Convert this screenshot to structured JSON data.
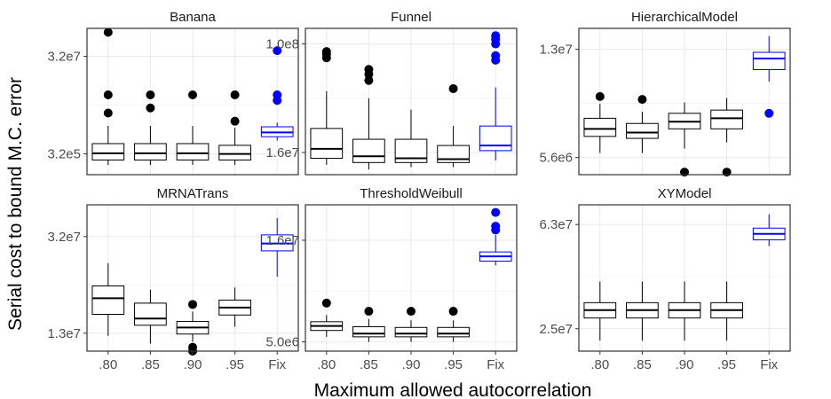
{
  "chart_data": {
    "type": "boxplot",
    "xlabel": "Maximum allowed autocorrelation",
    "ylabel": "Serial cost to bound M.C. error",
    "categories": [
      ".80",
      ".85",
      ".90",
      ".95",
      "Fix"
    ],
    "colors": {
      "default": "#000000",
      "fix": "#0000ff",
      "grid": "#ebebeb",
      "strip": "#ffffff",
      "border": "#333333"
    },
    "y_scale": "log",
    "panels": [
      {
        "title": "Banana",
        "ylim": [
          120000,
          120000000
        ],
        "yticks": [
          {
            "label": "3.2e5",
            "value": 320000
          },
          {
            "label": "3.2e7",
            "value": 32000000
          }
        ],
        "boxes": [
          {
            "category": ".80",
            "lower": 190000,
            "q1": 240000,
            "median": 330000,
            "q3": 520000,
            "upper": 1200000,
            "outliers": [
              100000000,
              5200000,
              2200000
            ]
          },
          {
            "category": ".85",
            "lower": 190000,
            "q1": 240000,
            "median": 330000,
            "q3": 520000,
            "upper": 1200000,
            "outliers": [
              5200000,
              2800000
            ]
          },
          {
            "category": ".90",
            "lower": 190000,
            "q1": 240000,
            "median": 330000,
            "q3": 520000,
            "upper": 1200000,
            "outliers": [
              5200000
            ]
          },
          {
            "category": ".95",
            "lower": 190000,
            "q1": 240000,
            "median": 320000,
            "q3": 480000,
            "upper": 1100000,
            "outliers": [
              5200000,
              1500000
            ]
          },
          {
            "category": "Fix",
            "lower": 600000,
            "q1": 720000,
            "median": 880000,
            "q3": 1150000,
            "upper": 1400000,
            "outliers": [
              42000000,
              5200000,
              4000000
            ]
          }
        ]
      },
      {
        "title": "Funnel",
        "ylim": [
          11000000,
          130000000
        ],
        "yticks": [
          {
            "label": "1.6e7",
            "value": 16000000
          },
          {
            "label": "1.0e8",
            "value": 100000000
          }
        ],
        "boxes": [
          {
            "category": ".80",
            "lower": 13000000,
            "q1": 14500000,
            "median": 17000000,
            "q3": 24000000,
            "upper": 45000000,
            "outliers": [
              88000000,
              84000000,
              79000000
            ]
          },
          {
            "category": ".85",
            "lower": 12000000,
            "q1": 13500000,
            "median": 15000000,
            "q3": 20000000,
            "upper": 40000000,
            "outliers": [
              65000000,
              60000000,
              54000000
            ]
          },
          {
            "category": ".90",
            "lower": 12500000,
            "q1": 13500000,
            "median": 14500000,
            "q3": 20000000,
            "upper": 33000000,
            "outliers": []
          },
          {
            "category": ".95",
            "lower": 12500000,
            "q1": 13500000,
            "median": 14300000,
            "q3": 18000000,
            "upper": 25000000,
            "outliers": [
              47000000
            ]
          },
          {
            "category": "Fix",
            "lower": 14000000,
            "q1": 16500000,
            "median": 18000000,
            "q3": 25000000,
            "upper": 48000000,
            "outliers": [
              115000000,
              108000000,
              100000000,
              82000000,
              76000000
            ]
          }
        ]
      },
      {
        "title": "HierarchicalModel",
        "ylim": [
          4900000,
          15300000
        ],
        "yticks": [
          {
            "label": "5.6e6",
            "value": 5600000
          },
          {
            "label": "1.3e7",
            "value": 13000000
          }
        ],
        "boxes": [
          {
            "category": ".80",
            "lower": 5800000,
            "q1": 6600000,
            "median": 7000000,
            "q3": 7600000,
            "upper": 8500000,
            "outliers": [
              9000000
            ]
          },
          {
            "category": ".85",
            "lower": 5800000,
            "q1": 6500000,
            "median": 6800000,
            "q3": 7300000,
            "upper": 8000000,
            "outliers": [
              8800000
            ]
          },
          {
            "category": ".90",
            "lower": 6000000,
            "q1": 7000000,
            "median": 7400000,
            "q3": 7900000,
            "upper": 8600000,
            "outliers": [
              5000000
            ]
          },
          {
            "category": ".95",
            "lower": 6300000,
            "q1": 7000000,
            "median": 7600000,
            "q3": 8100000,
            "upper": 8900000,
            "outliers": [
              5000000
            ]
          },
          {
            "category": "Fix",
            "lower": 10100000,
            "q1": 11100000,
            "median": 12100000,
            "q3": 12700000,
            "upper": 14400000,
            "outliers": [
              7900000
            ]
          }
        ]
      },
      {
        "title": "MRNATrans",
        "ylim": [
          11000000,
          43000000
        ],
        "yticks": [
          {
            "label": "1.3e7",
            "value": 13000000
          },
          {
            "label": "3.2e7",
            "value": 32000000
          }
        ],
        "boxes": [
          {
            "category": ".80",
            "lower": 12700000,
            "q1": 15500000,
            "median": 18000000,
            "q3": 20200000,
            "upper": 25000000,
            "outliers": []
          },
          {
            "category": ".85",
            "lower": 11800000,
            "q1": 14000000,
            "median": 14900000,
            "q3": 17200000,
            "upper": 19500000,
            "outliers": []
          },
          {
            "category": ".90",
            "lower": 12000000,
            "q1": 12900000,
            "median": 13700000,
            "q3": 14500000,
            "upper": 15900000,
            "outliers": [
              17000000,
              11400000,
              11000000
            ]
          },
          {
            "category": ".95",
            "lower": 13800000,
            "q1": 15400000,
            "median": 16500000,
            "q3": 17700000,
            "upper": 19900000,
            "outliers": []
          },
          {
            "category": "Fix",
            "lower": 22000000,
            "q1": 28000000,
            "median": 30000000,
            "q3": 32500000,
            "upper": 38000000,
            "outliers": []
          }
        ]
      },
      {
        "title": "ThresholdWeibull",
        "ylim": [
          4500000,
          24000000
        ],
        "yticks": [
          {
            "label": "5.0e6",
            "value": 5000000
          },
          {
            "label": "1.6e7",
            "value": 16000000
          }
        ],
        "boxes": [
          {
            "category": ".80",
            "lower": 5300000,
            "q1": 5700000,
            "median": 6000000,
            "q3": 6300000,
            "upper": 6800000,
            "outliers": [
              7800000
            ]
          },
          {
            "category": ".85",
            "lower": 5000000,
            "q1": 5300000,
            "median": 5500000,
            "q3": 5950000,
            "upper": 6500000,
            "outliers": [
              7100000
            ]
          },
          {
            "category": ".90",
            "lower": 5000000,
            "q1": 5300000,
            "median": 5500000,
            "q3": 5900000,
            "upper": 6400000,
            "outliers": [
              7100000
            ]
          },
          {
            "category": ".95",
            "lower": 5000000,
            "q1": 5300000,
            "median": 5500000,
            "q3": 5900000,
            "upper": 6400000,
            "outliers": [
              7100000
            ]
          },
          {
            "category": "Fix",
            "lower": 12000000,
            "q1": 12600000,
            "median": 13300000,
            "q3": 14000000,
            "upper": 17000000,
            "outliers": [
              22000000,
              18800000,
              18000000
            ]
          }
        ]
      },
      {
        "title": "XYModel",
        "ylim": [
          20500000,
          75000000
        ],
        "yticks": [
          {
            "label": "2.5e7",
            "value": 25000000
          },
          {
            "label": "6.3e7",
            "value": 63000000
          }
        ],
        "boxes": [
          {
            "category": ".80",
            "lower": 22500000,
            "q1": 27500000,
            "median": 29500000,
            "q3": 31500000,
            "upper": 38000000,
            "outliers": []
          },
          {
            "category": ".85",
            "lower": 22500000,
            "q1": 27500000,
            "median": 29500000,
            "q3": 31500000,
            "upper": 38000000,
            "outliers": []
          },
          {
            "category": ".90",
            "lower": 22500000,
            "q1": 27500000,
            "median": 29500000,
            "q3": 31500000,
            "upper": 38000000,
            "outliers": []
          },
          {
            "category": ".95",
            "lower": 22500000,
            "q1": 27500000,
            "median": 29500000,
            "q3": 31500000,
            "upper": 38000000,
            "outliers": []
          },
          {
            "category": "Fix",
            "lower": 52000000,
            "q1": 55000000,
            "median": 58000000,
            "q3": 61000000,
            "upper": 69000000,
            "outliers": []
          }
        ]
      }
    ]
  }
}
